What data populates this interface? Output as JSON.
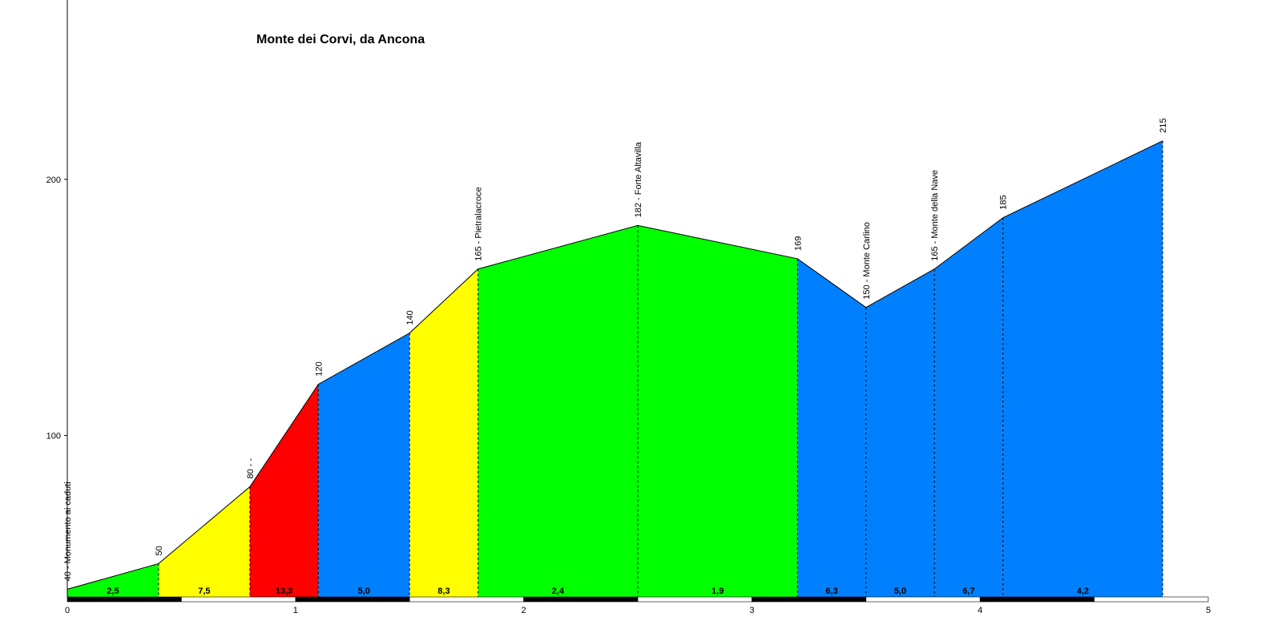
{
  "chart_data": {
    "type": "area",
    "title": "Monte dei Corvi, da Ancona",
    "xlabel": "",
    "ylabel": "",
    "xlim": [
      0,
      5
    ],
    "ylim": [
      37,
      270
    ],
    "x_ticks": [
      "0",
      "1",
      "2",
      "3",
      "4",
      "5"
    ],
    "y_ticks": [
      "100",
      "200"
    ],
    "points": [
      {
        "x": 0.0,
        "y": 40,
        "label": "40 - Monumento ai caduti"
      },
      {
        "x": 0.4,
        "y": 50,
        "label": "50"
      },
      {
        "x": 0.8,
        "y": 80,
        "label": "80 - -"
      },
      {
        "x": 1.1,
        "y": 120,
        "label": "120"
      },
      {
        "x": 1.5,
        "y": 140,
        "label": "140"
      },
      {
        "x": 1.8,
        "y": 165,
        "label": "165 - Pietralacroce"
      },
      {
        "x": 2.5,
        "y": 182,
        "label": "182 - Forte Altavilla"
      },
      {
        "x": 3.2,
        "y": 169,
        "label": "169"
      },
      {
        "x": 3.5,
        "y": 150,
        "label": "150 - Monte Carlino"
      },
      {
        "x": 3.8,
        "y": 165,
        "label": "165 - Monte della Nave"
      },
      {
        "x": 4.1,
        "y": 185,
        "label": "185"
      },
      {
        "x": 4.8,
        "y": 215,
        "label": "215"
      }
    ],
    "segments": [
      {
        "from": 0.0,
        "to": 0.4,
        "gradient": "2,5",
        "color": "#00ff00"
      },
      {
        "from": 0.4,
        "to": 0.8,
        "gradient": "7,5",
        "color": "#ffff00"
      },
      {
        "from": 0.8,
        "to": 1.1,
        "gradient": "13,3",
        "color": "#ff0000"
      },
      {
        "from": 1.1,
        "to": 1.5,
        "gradient": "5,0",
        "color": "#0080ff"
      },
      {
        "from": 1.5,
        "to": 1.8,
        "gradient": "8,3",
        "color": "#ffff00"
      },
      {
        "from": 1.8,
        "to": 2.5,
        "gradient": "2,4",
        "color": "#00ff00"
      },
      {
        "from": 2.5,
        "to": 3.2,
        "gradient": "1,9",
        "color": "#00ff00"
      },
      {
        "from": 3.2,
        "to": 3.5,
        "gradient": "6,3",
        "color": "#0080ff"
      },
      {
        "from": 3.5,
        "to": 3.8,
        "gradient": "5,0",
        "color": "#0080ff"
      },
      {
        "from": 3.8,
        "to": 4.1,
        "gradient": "6,7",
        "color": "#0080ff"
      },
      {
        "from": 4.1,
        "to": 4.8,
        "gradient": "4,2",
        "color": "#0080ff"
      }
    ],
    "grid": false,
    "legend": "none"
  }
}
